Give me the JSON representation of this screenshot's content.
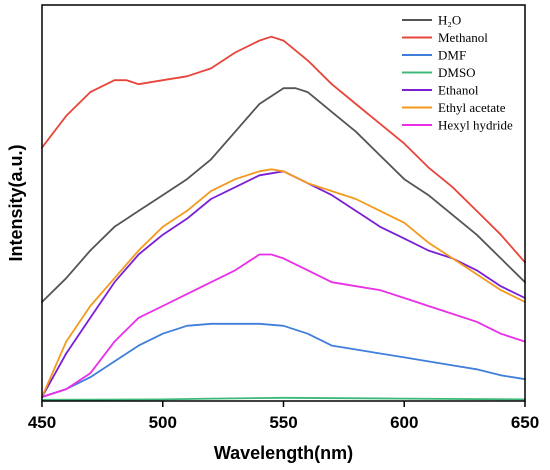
{
  "chart_data": {
    "type": "line",
    "title": "",
    "xlabel": "Wavelength(nm)",
    "ylabel": "Intensity(a.u.)",
    "xlim": [
      450,
      650
    ],
    "ylim": [
      0,
      100
    ],
    "xticks": [
      450,
      500,
      550,
      600,
      650
    ],
    "yticks_shown": false,
    "legend_position": "top-right",
    "series": [
      {
        "name": "H₂O",
        "color": "#555555",
        "x": [
          450,
          460,
          470,
          480,
          490,
          500,
          510,
          520,
          530,
          540,
          550,
          555,
          560,
          570,
          580,
          590,
          600,
          610,
          620,
          630,
          640,
          650
        ],
        "y": [
          25,
          31,
          38,
          44,
          48,
          52,
          56,
          61,
          68,
          75,
          79,
          79,
          78,
          73,
          68,
          62,
          56,
          52,
          47,
          42,
          36,
          30
        ]
      },
      {
        "name": "Methanol",
        "color": "#e8443a",
        "x": [
          450,
          460,
          470,
          480,
          485,
          490,
          500,
          510,
          520,
          530,
          540,
          545,
          550,
          560,
          570,
          580,
          590,
          600,
          610,
          620,
          630,
          640,
          650
        ],
        "y": [
          64,
          72,
          78,
          81,
          81,
          80,
          81,
          82,
          84,
          88,
          91,
          92,
          91,
          86,
          80,
          75,
          70,
          65,
          59,
          54,
          48,
          42,
          35
        ]
      },
      {
        "name": "DMF",
        "color": "#3f7fd9",
        "x": [
          450,
          460,
          470,
          480,
          490,
          500,
          510,
          520,
          530,
          540,
          550,
          560,
          570,
          580,
          590,
          600,
          610,
          620,
          630,
          640,
          650
        ],
        "y": [
          1,
          3,
          6,
          10,
          14,
          17,
          19,
          19.5,
          19.5,
          19.5,
          19,
          17,
          14,
          13,
          12,
          11,
          10,
          9,
          8,
          6.5,
          5.5
        ]
      },
      {
        "name": "DMSO",
        "color": "#3cb878",
        "x": [
          450,
          500,
          520,
          550,
          600,
          650
        ],
        "y": [
          0.3,
          0.4,
          0.6,
          0.8,
          0.6,
          0.4
        ]
      },
      {
        "name": "Ethanol",
        "color": "#7a1fd6",
        "x": [
          450,
          460,
          470,
          480,
          490,
          500,
          510,
          520,
          530,
          540,
          550,
          560,
          570,
          580,
          590,
          600,
          610,
          620,
          630,
          640,
          650
        ],
        "y": [
          1,
          12,
          21,
          30,
          37,
          42,
          46,
          51,
          54,
          57,
          58,
          55,
          52,
          48,
          44,
          41,
          38,
          36,
          33,
          29,
          26
        ]
      },
      {
        "name": "Ethyl acetate",
        "color": "#f39a1e",
        "x": [
          450,
          460,
          470,
          480,
          490,
          500,
          510,
          520,
          530,
          540,
          545,
          550,
          560,
          570,
          580,
          590,
          600,
          610,
          620,
          630,
          640,
          650
        ],
        "y": [
          1,
          15,
          24,
          31,
          38,
          44,
          48,
          53,
          56,
          58,
          58.5,
          58,
          55,
          53,
          51,
          48,
          45,
          40,
          36,
          32,
          28,
          25
        ]
      },
      {
        "name": "Hexyl hydride",
        "color": "#ea2fe8",
        "x": [
          450,
          460,
          470,
          480,
          490,
          500,
          510,
          520,
          530,
          540,
          545,
          550,
          560,
          570,
          580,
          590,
          600,
          610,
          620,
          630,
          640,
          650
        ],
        "y": [
          1,
          3,
          7,
          15,
          21,
          24,
          27,
          30,
          33,
          37,
          37,
          36,
          33,
          30,
          29,
          28,
          26,
          24,
          22,
          20,
          17,
          15
        ]
      }
    ]
  }
}
